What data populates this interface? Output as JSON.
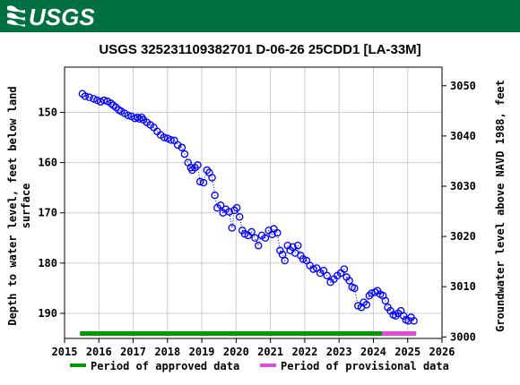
{
  "header": {
    "logo_text": "USGS",
    "brand_color": "#006f41"
  },
  "chart_data": {
    "type": "scatter",
    "title": "USGS 325231109382701 D-06-26 25CDD1 [LA-33M]",
    "ylabel": "Depth to water level, feet below land surface",
    "ylabel_lines": [
      "Depth to water level, feet below land",
      "surface"
    ],
    "y2label": "Groundwater level above NAVD 1988, feet",
    "xlim": [
      2015,
      2026
    ],
    "ylim": [
      195,
      141
    ],
    "y2lim": [
      2999.7,
      3053.7
    ],
    "xticks": [
      "2015",
      "2016",
      "2017",
      "2018",
      "2019",
      "2020",
      "2021",
      "2022",
      "2023",
      "2024",
      "2025",
      "2026"
    ],
    "yticks": [
      "150",
      "160",
      "170",
      "180",
      "190"
    ],
    "y2ticks": [
      "3000",
      "3010",
      "3020",
      "3030",
      "3040",
      "3050"
    ],
    "grid": true,
    "series": [
      {
        "marker": "open-circle",
        "line": "dotted",
        "color": "#0000ff",
        "x": [
          2015.52,
          2015.6,
          2015.72,
          2015.85,
          2015.95,
          2016.05,
          2016.15,
          2016.25,
          2016.35,
          2016.42,
          2016.5,
          2016.58,
          2016.65,
          2016.75,
          2016.85,
          2016.95,
          2017.05,
          2017.12,
          2017.18,
          2017.25,
          2017.3,
          2017.4,
          2017.5,
          2017.6,
          2017.7,
          2017.8,
          2017.9,
          2018.0,
          2018.1,
          2018.2,
          2018.3,
          2018.42,
          2018.5,
          2018.6,
          2018.68,
          2018.72,
          2018.8,
          2018.88,
          2018.95,
          2019.05,
          2019.15,
          2019.22,
          2019.3,
          2019.38,
          2019.45,
          2019.55,
          2019.62,
          2019.7,
          2019.8,
          2019.88,
          2019.95,
          2020.02,
          2020.1,
          2020.18,
          2020.25,
          2020.35,
          2020.45,
          2020.55,
          2020.65,
          2020.75,
          2020.85,
          2020.95,
          2021.05,
          2021.1,
          2021.2,
          2021.28,
          2021.35,
          2021.42,
          2021.5,
          2021.58,
          2021.65,
          2021.72,
          2021.8,
          2021.88,
          2021.95,
          2022.05,
          2022.15,
          2022.25,
          2022.35,
          2022.45,
          2022.55,
          2022.65,
          2022.75,
          2022.85,
          2022.95,
          2023.05,
          2023.15,
          2023.22,
          2023.3,
          2023.38,
          2023.45,
          2023.55,
          2023.65,
          2023.72,
          2023.8,
          2023.88,
          2023.95,
          2024.05,
          2024.12,
          2024.2,
          2024.28,
          2024.35,
          2024.42,
          2024.5,
          2024.58,
          2024.65,
          2024.72,
          2024.8,
          2024.88,
          2024.95,
          2025.02,
          2025.1,
          2025.18
        ],
        "y": [
          146.3,
          146.8,
          147.0,
          147.3,
          147.6,
          147.9,
          147.6,
          147.8,
          148.2,
          148.6,
          149.0,
          149.5,
          149.8,
          150.2,
          150.6,
          150.8,
          151.2,
          151.0,
          151.3,
          151.0,
          151.5,
          152.0,
          152.5,
          153.0,
          153.8,
          154.5,
          155.0,
          155.2,
          155.5,
          155.6,
          156.5,
          157.0,
          158.3,
          160.0,
          161.0,
          161.5,
          161.0,
          160.5,
          163.8,
          164.0,
          161.5,
          162.0,
          163.0,
          166.5,
          169.0,
          168.5,
          170.0,
          169.3,
          169.8,
          173.0,
          169.5,
          169.0,
          170.8,
          173.5,
          174.2,
          174.5,
          173.8,
          175.0,
          176.5,
          174.5,
          175.0,
          173.5,
          174.3,
          173.2,
          174.0,
          177.5,
          178.3,
          179.5,
          176.5,
          177.5,
          176.8,
          178.0,
          176.5,
          178.5,
          179.2,
          179.5,
          180.5,
          181.2,
          181.0,
          182.0,
          181.5,
          182.5,
          183.8,
          183.2,
          182.5,
          182.0,
          181.2,
          182.8,
          183.5,
          184.8,
          185.0,
          188.5,
          188.8,
          187.8,
          188.3,
          186.5,
          186.0,
          185.8,
          185.5,
          186.2,
          186.5,
          187.5,
          188.8,
          189.5,
          190.3,
          190.5,
          190.0,
          189.5,
          190.5,
          191.3,
          191.5,
          190.8,
          191.5
        ]
      }
    ],
    "periods": [
      {
        "name": "Period of approved data",
        "color": "#009900",
        "x": [
          2015.45,
          2024.25
        ]
      },
      {
        "name": "Period of provisional data",
        "color": "#e24bd6",
        "x": [
          2024.25,
          2025.25
        ]
      }
    ]
  }
}
